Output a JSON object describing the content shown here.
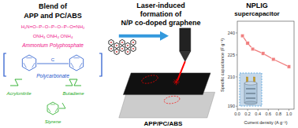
{
  "chart_data": {
    "type": "line",
    "title": "NPLIG",
    "subtitle": "supercapacitor",
    "xlabel": "Current density  (A g⁻¹)",
    "ylabel": "Specific capacitance (F g⁻¹)",
    "x": [
      0.1,
      0.2,
      0.3,
      0.5,
      0.7,
      1.0
    ],
    "values": [
      238,
      233,
      229,
      226,
      222,
      217
    ],
    "color": "#f08080",
    "marker": "square",
    "xlim": [
      0.0,
      1.1
    ],
    "ylim": [
      188,
      248
    ],
    "xticks": [
      {
        "value": 0.0,
        "label": "0.0"
      },
      0.2,
      0.4,
      0.6,
      0.8,
      {
        "value": 1.0,
        "label": "1.0"
      }
    ],
    "yticks": [
      190,
      210,
      225,
      240
    ],
    "grid": false,
    "annotations": [
      "Blend of",
      "APP and PC/ABS",
      "H₂N=O−P−O−P−O−P−O=NH₂",
      "ONH₄ ONH₄ ONH₄",
      "Ammonium Polyphosphate",
      "C",
      "Polycarbonate",
      "Acrylonitrile",
      "Butadiene",
      "Styrene",
      "Laser-induced",
      "formation of",
      "N/P co-doped graphene",
      "APP/PC/ABS"
    ]
  }
}
